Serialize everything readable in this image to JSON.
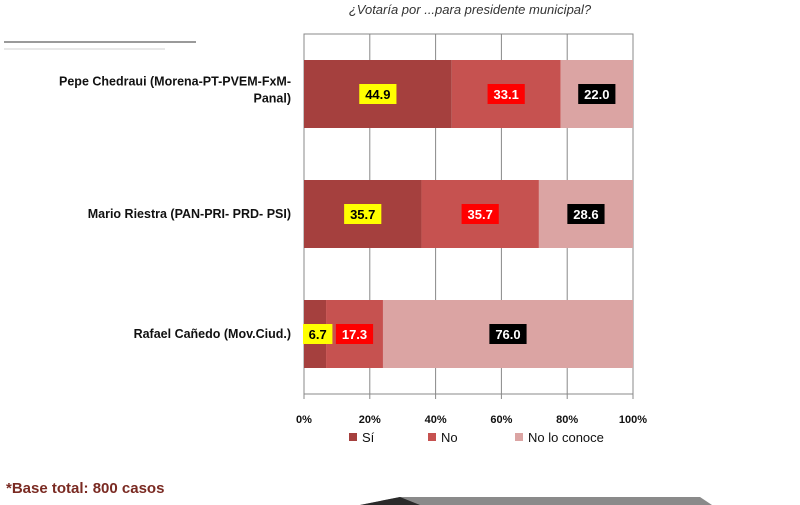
{
  "question": "¿Votaría por ...para presidente municipal?",
  "base_note": "*Base total: 800 casos",
  "colors": {
    "si": "#a5403e",
    "no": "#c65250",
    "no_lo_conoce": "#dba4a3",
    "label_si_bg": "#ffff00",
    "label_no_bg": "#ff0000",
    "label_nlc_bg": "#000000"
  },
  "chart_data": {
    "type": "bar",
    "orientation": "horizontal",
    "stacked": true,
    "title": "¿Votaría por ...para presidente municipal?",
    "categories": [
      [
        "Pepe Chedraui (Morena-PT-PVEM-FxM-",
        "Panal)"
      ],
      [
        "Mario Riestra (PAN-PRI- PRD- PSI)"
      ],
      [
        "Rafael Cañedo (Mov.Ciud.)"
      ]
    ],
    "series": [
      {
        "name": "Sí",
        "values": [
          44.9,
          35.7,
          6.7
        ],
        "labels": [
          "44.9",
          "35.7",
          "6.7"
        ]
      },
      {
        "name": "No",
        "values": [
          33.1,
          35.7,
          17.3
        ],
        "labels": [
          "33.1",
          "35.7",
          "17.3"
        ]
      },
      {
        "name": "No lo conoce",
        "values": [
          22.0,
          28.6,
          76.0
        ],
        "labels": [
          "22.0",
          "28.6",
          "76.0"
        ]
      }
    ],
    "xlim": [
      0,
      100
    ],
    "xticks": [
      "0%",
      "20%",
      "40%",
      "60%",
      "80%",
      "100%"
    ],
    "grid": true,
    "legend": "bottom"
  }
}
